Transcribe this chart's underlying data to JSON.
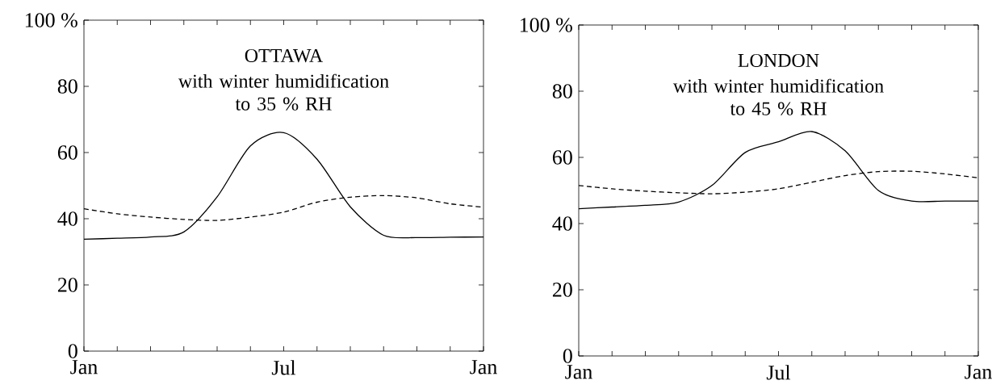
{
  "chart_data": [
    {
      "type": "line",
      "title": "OTTAWA",
      "subtitle": "with winter humidification to 35 % RH",
      "categories": [
        "Jan",
        null,
        null,
        null,
        null,
        null,
        "Jul",
        null,
        null,
        null,
        null,
        null,
        "Jan"
      ],
      "series": [
        {
          "color": "#000000",
          "line_style": "solid",
          "values": [
            33.8,
            34.1,
            34.5,
            36,
            46.6,
            62,
            66,
            58,
            43.6,
            35,
            34.3,
            34.4,
            34.5
          ]
        },
        {
          "color": "#000000",
          "line_style": "dashed",
          "values": [
            43,
            41.5,
            40.5,
            39.8,
            39.5,
            40.5,
            42,
            45,
            46.5,
            47,
            46.3,
            44.5,
            43.5
          ]
        }
      ],
      "ylim": [
        0,
        100
      ],
      "yticks": [
        0,
        20,
        40,
        60,
        80,
        {
          "value": 100,
          "label": "100 %"
        }
      ]
    },
    {
      "type": "line",
      "title": "LONDON",
      "subtitle": "with winter humidification to 45 % RH",
      "categories": [
        "Jan",
        null,
        null,
        null,
        null,
        null,
        "Jul",
        null,
        null,
        null,
        null,
        null,
        "Jan"
      ],
      "series": [
        {
          "color": "#000000",
          "line_style": "solid",
          "values": [
            44.5,
            45,
            45.5,
            46.5,
            51.5,
            61.5,
            64.7,
            67.8,
            62,
            50,
            46.8,
            46.8,
            46.8
          ]
        },
        {
          "color": "#000000",
          "line_style": "dashed",
          "values": [
            51.5,
            50.5,
            49.8,
            49.3,
            49,
            49.5,
            50.5,
            52.5,
            54.5,
            55.7,
            55.8,
            55,
            53.8
          ]
        }
      ],
      "ylim": [
        0,
        100
      ],
      "yticks": [
        0,
        20,
        40,
        60,
        80,
        {
          "value": 100,
          "label": "100 %"
        }
      ]
    }
  ]
}
